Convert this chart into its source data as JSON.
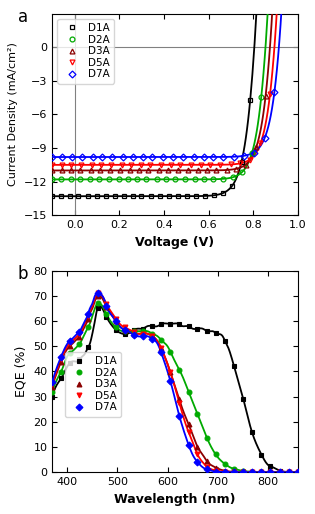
{
  "panel_a": {
    "xlabel": "Voltage (V)",
    "ylabel": "Current Density (mA/cm²)",
    "xlim": [
      -0.1,
      1.0
    ],
    "ylim": [
      -15,
      3
    ],
    "yticks": [
      -15,
      -12,
      -9,
      -6,
      -3,
      0
    ],
    "xticks": [
      0.0,
      0.2,
      0.4,
      0.6,
      0.8,
      1.0
    ],
    "curves": [
      {
        "label": "D1A",
        "color": "#000000",
        "marker": "s",
        "jsc": -13.3,
        "voc": 0.805,
        "n_id": 1.3,
        "rs": 0.8
      },
      {
        "label": "D2A",
        "color": "#00aa00",
        "marker": "o",
        "jsc": -11.8,
        "voc": 0.855,
        "n_id": 1.3,
        "rs": 0.7
      },
      {
        "label": "D3A",
        "color": "#8b0000",
        "marker": "^",
        "jsc": -11.0,
        "voc": 0.875,
        "n_id": 1.3,
        "rs": 0.6
      },
      {
        "label": "D5A",
        "color": "#ff0000",
        "marker": "v",
        "jsc": -10.5,
        "voc": 0.895,
        "n_id": 1.3,
        "rs": 0.6
      },
      {
        "label": "D7A",
        "color": "#0000ff",
        "marker": "D",
        "jsc": -9.8,
        "voc": 0.915,
        "n_id": 1.3,
        "rs": 0.6
      }
    ]
  },
  "panel_b": {
    "xlabel": "Wavelength (nm)",
    "ylabel": "EQE (%)",
    "xlim": [
      370,
      860
    ],
    "ylim": [
      0,
      80
    ],
    "yticks": [
      0,
      10,
      20,
      30,
      40,
      50,
      60,
      70,
      80
    ],
    "xticks": [
      400,
      500,
      600,
      700,
      800
    ],
    "curves": [
      {
        "label": "D1A",
        "color": "#000000",
        "marker": "s",
        "wl": [
          370,
          380,
          390,
          400,
          410,
          415,
          420,
          425,
          430,
          435,
          440,
          445,
          450,
          455,
          460,
          465,
          470,
          475,
          480,
          490,
          500,
          510,
          520,
          530,
          540,
          550,
          560,
          570,
          580,
          590,
          600,
          610,
          620,
          630,
          640,
          650,
          660,
          670,
          680,
          690,
          700,
          710,
          715,
          720,
          730,
          740,
          750,
          760,
          770,
          780,
          790,
          800,
          810,
          815,
          820,
          825,
          830,
          840,
          850
        ],
        "eqe": [
          30,
          35,
          38,
          42,
          44,
          44,
          44,
          45,
          46,
          47,
          49,
          51,
          55,
          60,
          65,
          66,
          65,
          63,
          61,
          58,
          56,
          55,
          55,
          56,
          57,
          57,
          58,
          58,
          58,
          59,
          59,
          59,
          59,
          58,
          58,
          57,
          57,
          57,
          56,
          56,
          55,
          54,
          52,
          50,
          44,
          37,
          30,
          22,
          15,
          10,
          6,
          3,
          2,
          1.5,
          1,
          0.5,
          0.3,
          0.1,
          0
        ]
      },
      {
        "label": "D2A",
        "color": "#00aa00",
        "marker": "o",
        "wl": [
          370,
          380,
          390,
          400,
          410,
          415,
          420,
          425,
          430,
          435,
          440,
          445,
          450,
          455,
          460,
          465,
          470,
          475,
          480,
          490,
          500,
          510,
          520,
          530,
          540,
          550,
          560,
          570,
          580,
          590,
          600,
          610,
          620,
          630,
          640,
          650,
          660,
          670,
          680,
          690,
          700,
          710,
          720,
          730,
          740,
          750,
          760,
          770,
          775,
          780,
          790,
          800,
          810,
          840,
          850
        ],
        "eqe": [
          32,
          37,
          41,
          46,
          48,
          49,
          50,
          51,
          53,
          55,
          57,
          59,
          62,
          65,
          67,
          67,
          66,
          64,
          62,
          59,
          57,
          56,
          56,
          56,
          56,
          56,
          56,
          55,
          54,
          52,
          50,
          46,
          42,
          38,
          33,
          28,
          23,
          18,
          13,
          9,
          6,
          4,
          2.5,
          1.5,
          1,
          0.5,
          0.3,
          0.2,
          0.15,
          0.1,
          0.05,
          0,
          0,
          0,
          0
        ]
      },
      {
        "label": "D3A",
        "color": "#8b0000",
        "marker": "^",
        "wl": [
          370,
          380,
          390,
          400,
          410,
          415,
          420,
          425,
          430,
          435,
          440,
          445,
          450,
          455,
          460,
          465,
          470,
          475,
          480,
          490,
          500,
          510,
          520,
          530,
          540,
          550,
          560,
          570,
          580,
          590,
          600,
          610,
          620,
          630,
          640,
          650,
          660,
          670,
          680,
          690,
          700,
          710,
          720,
          730,
          740,
          750,
          760,
          840,
          850
        ],
        "eqe": [
          34,
          40,
          45,
          49,
          51,
          52,
          53,
          54,
          56,
          58,
          60,
          63,
          65,
          68,
          70,
          70,
          69,
          67,
          65,
          62,
          59,
          57,
          56,
          55,
          55,
          55,
          55,
          54,
          52,
          48,
          43,
          37,
          31,
          25,
          20,
          15,
          10,
          7,
          4,
          2.5,
          1.5,
          0.8,
          0.4,
          0.2,
          0.1,
          0.05,
          0,
          0,
          0
        ]
      },
      {
        "label": "D5A",
        "color": "#ff0000",
        "marker": "v",
        "wl": [
          370,
          380,
          390,
          400,
          410,
          415,
          420,
          425,
          430,
          435,
          440,
          445,
          450,
          455,
          460,
          465,
          470,
          475,
          480,
          490,
          500,
          510,
          520,
          530,
          540,
          550,
          560,
          570,
          580,
          590,
          600,
          610,
          620,
          630,
          640,
          650,
          660,
          670,
          680,
          690,
          700,
          710,
          720,
          730,
          840,
          850
        ],
        "eqe": [
          35,
          41,
          46,
          50,
          52,
          53,
          54,
          55,
          57,
          59,
          61,
          64,
          66,
          69,
          71,
          71,
          70,
          68,
          66,
          63,
          60,
          58,
          57,
          56,
          55,
          55,
          55,
          54,
          52,
          48,
          43,
          37,
          30,
          23,
          17,
          12,
          7,
          4,
          2,
          1,
          0.5,
          0.3,
          0.15,
          0.05,
          0,
          0
        ]
      },
      {
        "label": "D7A",
        "color": "#0000ff",
        "marker": "D",
        "wl": [
          370,
          380,
          390,
          400,
          410,
          415,
          420,
          425,
          430,
          435,
          440,
          445,
          450,
          455,
          460,
          465,
          470,
          475,
          480,
          490,
          500,
          510,
          520,
          530,
          540,
          550,
          560,
          570,
          580,
          590,
          600,
          610,
          620,
          630,
          640,
          650,
          660,
          670,
          680,
          690,
          700,
          710,
          720,
          840,
          850
        ],
        "eqe": [
          36,
          42,
          47,
          51,
          53,
          54,
          55,
          56,
          58,
          60,
          62,
          65,
          67,
          70,
          71,
          71,
          70,
          68,
          65,
          62,
          59,
          57,
          56,
          55,
          54,
          54,
          54,
          53,
          51,
          46,
          40,
          33,
          25,
          18,
          12,
          7,
          4,
          2,
          1,
          0.5,
          0.2,
          0.1,
          0.05,
          0,
          0
        ]
      }
    ]
  }
}
